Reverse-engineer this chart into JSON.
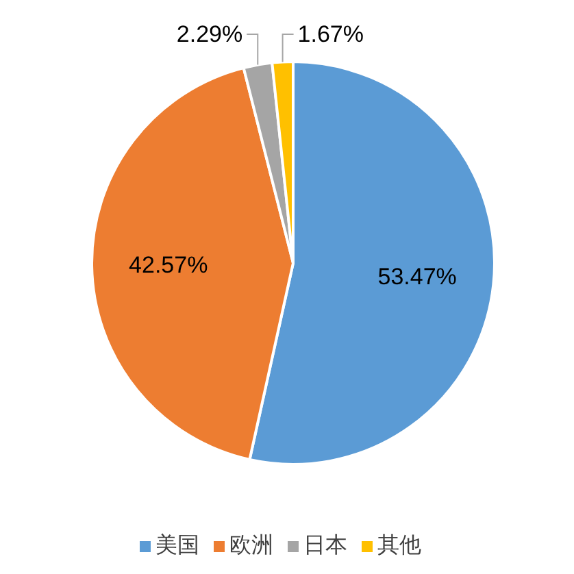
{
  "chart_data": {
    "type": "pie",
    "categories": [
      "美国",
      "欧洲",
      "日本",
      "其他"
    ],
    "values": [
      53.47,
      42.57,
      2.29,
      1.67
    ],
    "colors": [
      "#5b9bd5",
      "#ed7d31",
      "#a5a5a5",
      "#ffc000"
    ],
    "value_labels": [
      "53.47%",
      "42.57%",
      "2.29%",
      "1.67%"
    ],
    "legend": "bottom"
  }
}
